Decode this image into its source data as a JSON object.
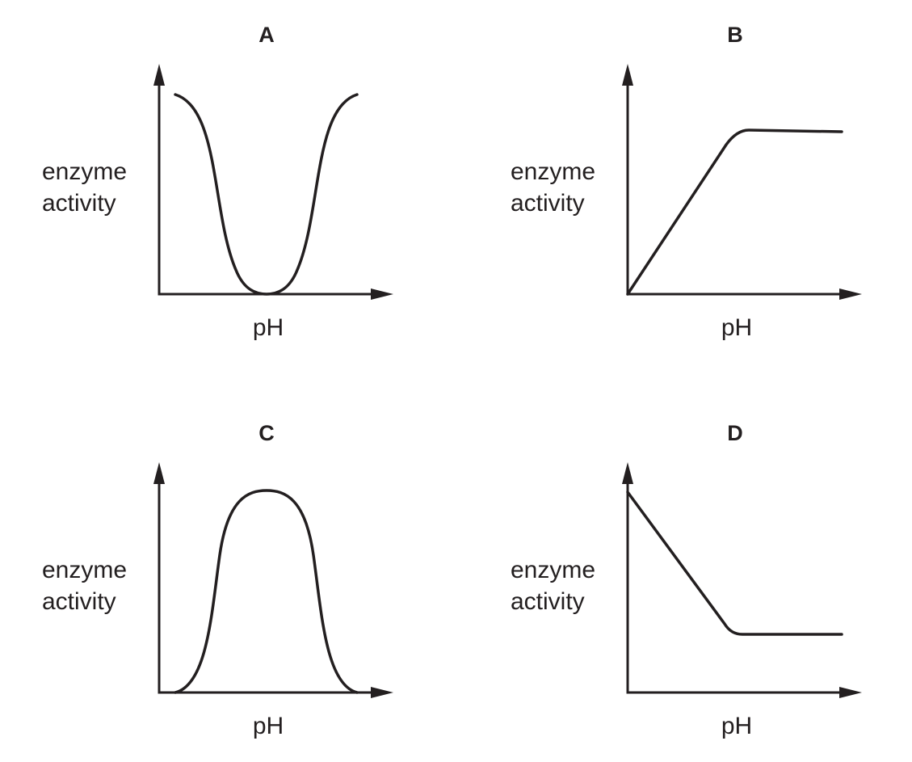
{
  "panels": [
    {
      "title": "A",
      "y_label": [
        "enzyme",
        "activity"
      ],
      "x_label": "pH"
    },
    {
      "title": "B",
      "y_label": [
        "enzyme",
        "activity"
      ],
      "x_label": "pH"
    },
    {
      "title": "C",
      "y_label": [
        "enzyme",
        "activity"
      ],
      "x_label": "pH"
    },
    {
      "title": "D",
      "y_label": [
        "enzyme",
        "activity"
      ],
      "x_label": "pH"
    }
  ]
}
